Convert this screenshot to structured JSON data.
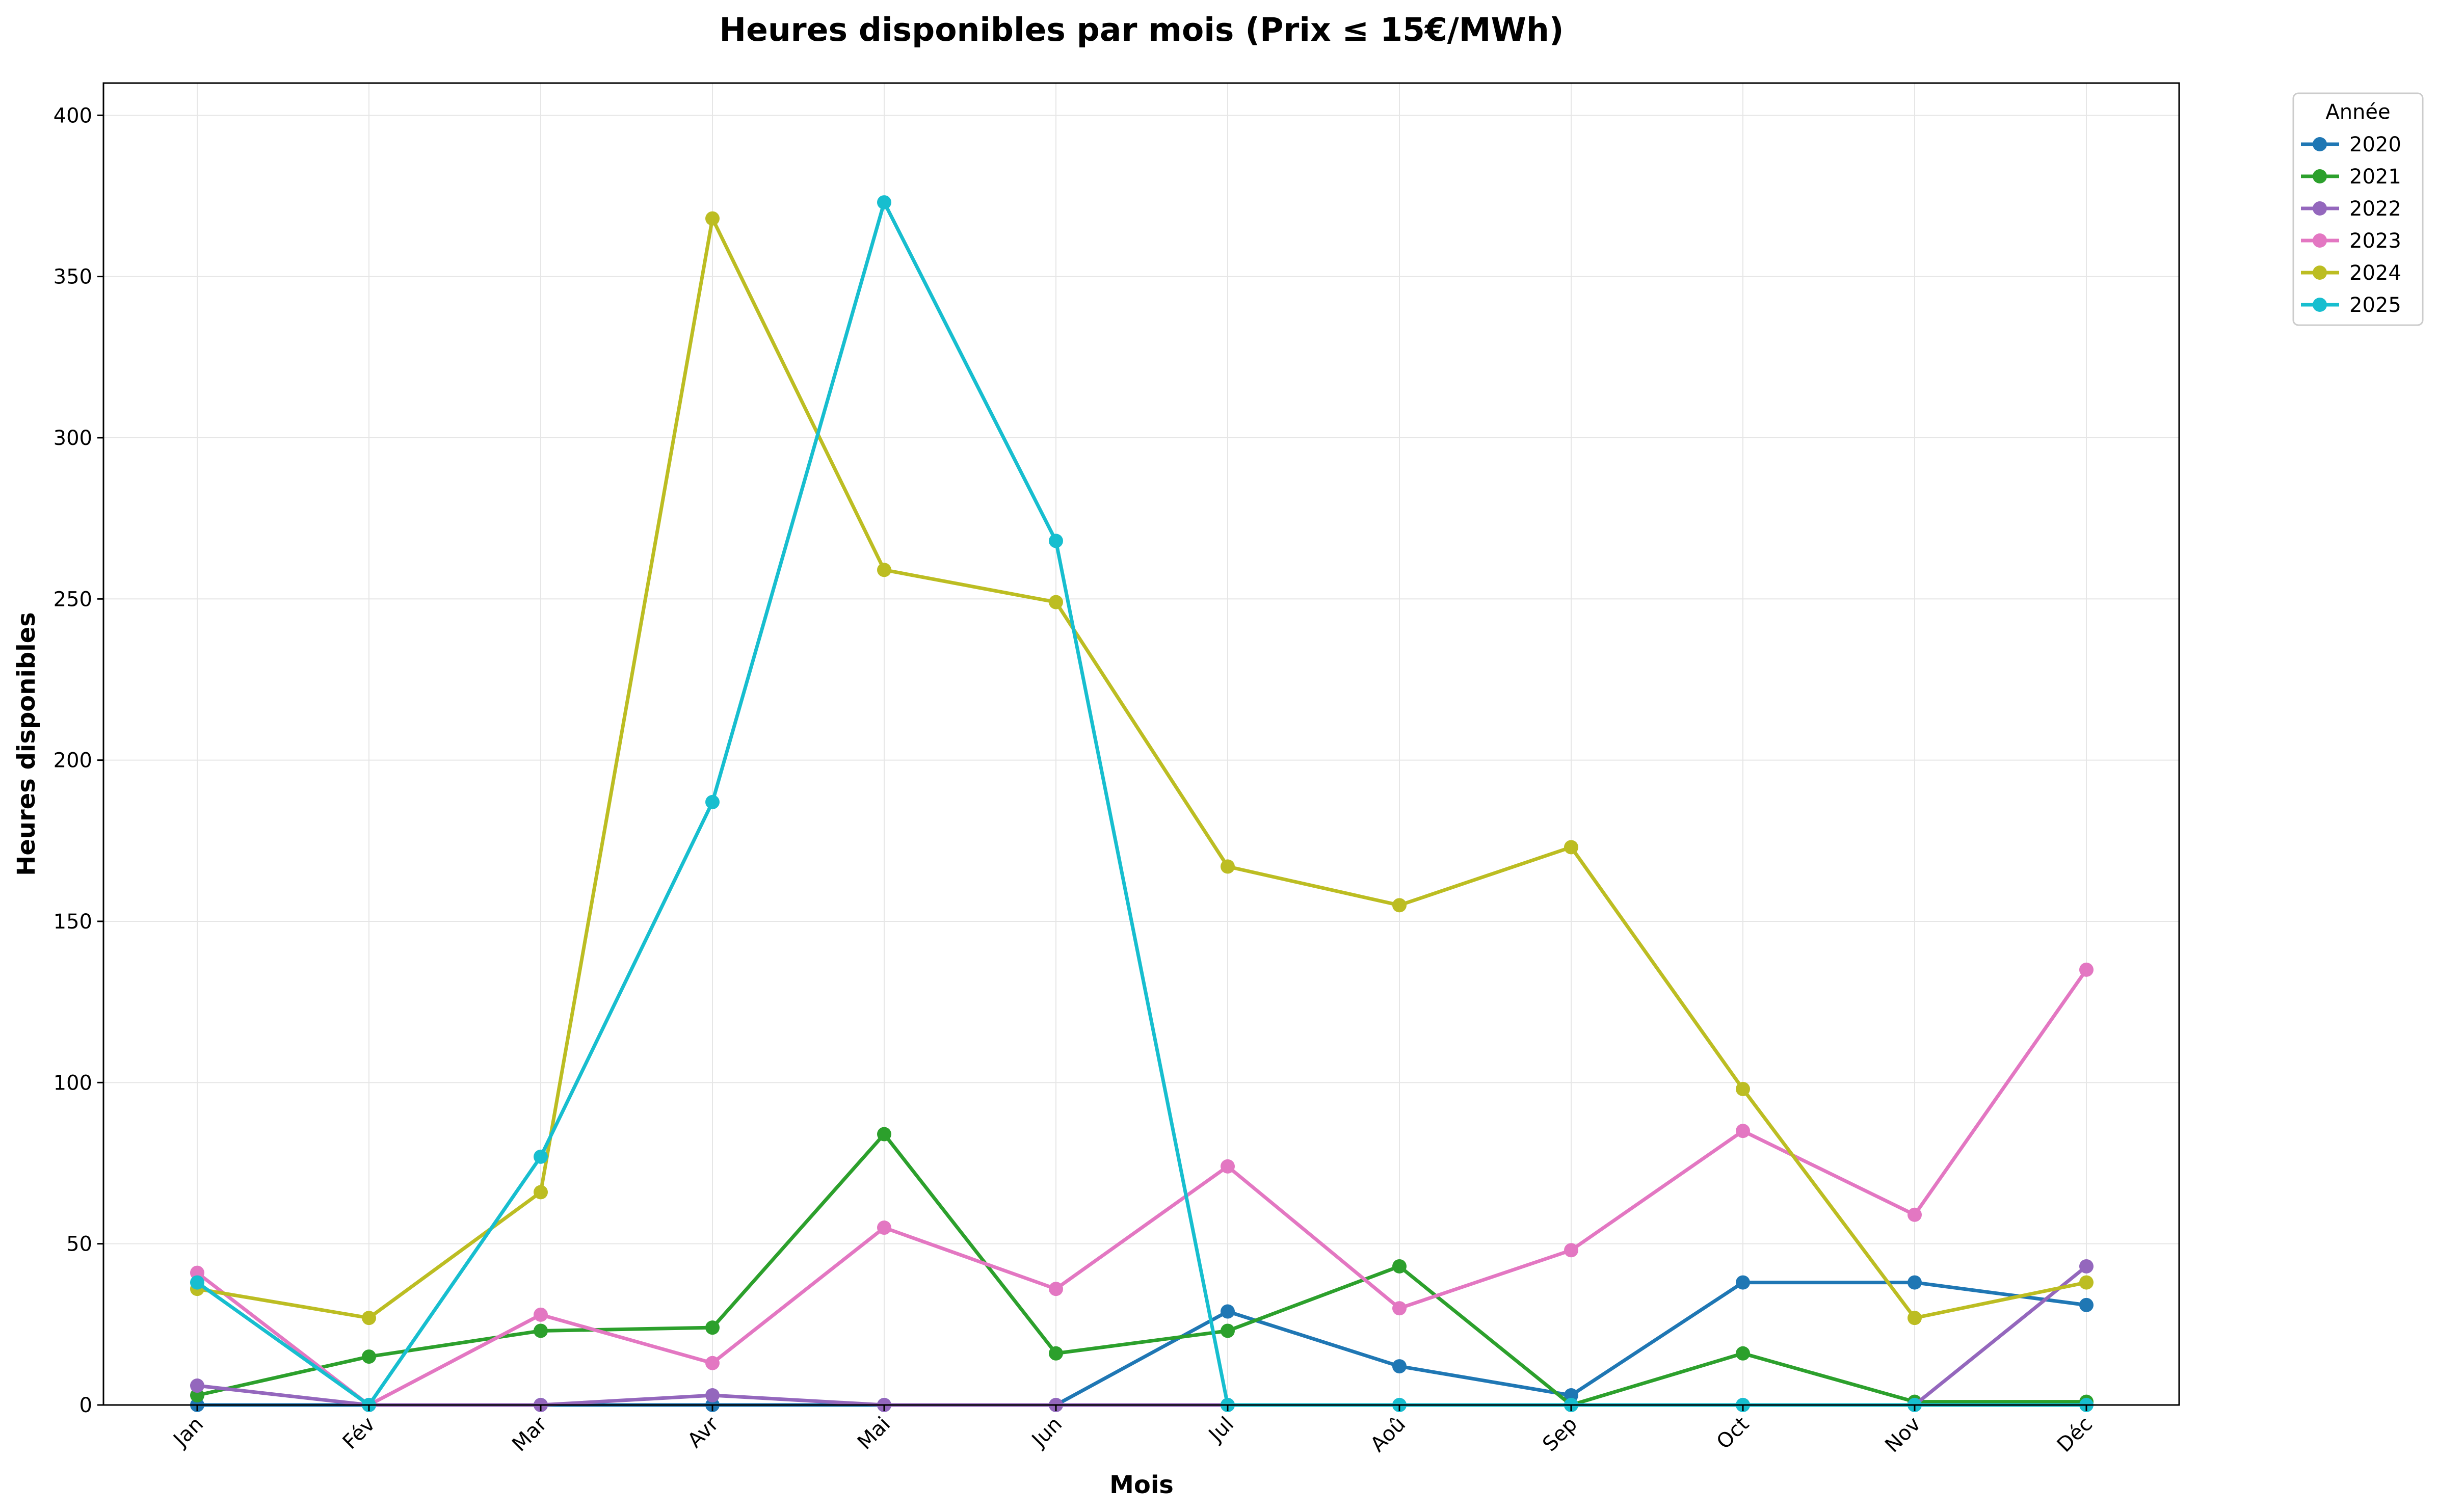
{
  "chart_data": {
    "type": "line",
    "title": "Heures disponibles par mois (Prix ≤ 15€/MWh)",
    "xlabel": "Mois",
    "ylabel": "Heures disponibles",
    "categories": [
      "Jan",
      "Fév",
      "Mar",
      "Avr",
      "Mai",
      "Jun",
      "Jul",
      "Aoû",
      "Sep",
      "Oct",
      "Nov",
      "Déc"
    ],
    "ylim": [
      0,
      410
    ],
    "yticks": [
      0,
      50,
      100,
      150,
      200,
      250,
      300,
      350,
      400
    ],
    "grid": true,
    "legend_title": "Année",
    "legend_position": "outside top-right",
    "series": [
      {
        "name": "2020",
        "color": "#1f77b4",
        "values": [
          0,
          0,
          0,
          0,
          0,
          0,
          29,
          12,
          3,
          38,
          38,
          31
        ]
      },
      {
        "name": "2021",
        "color": "#2ca02c",
        "values": [
          3,
          15,
          23,
          24,
          84,
          16,
          23,
          43,
          0,
          16,
          1,
          1
        ]
      },
      {
        "name": "2022",
        "color": "#9467bd",
        "values": [
          6,
          0,
          0,
          3,
          0,
          0,
          0,
          0,
          0,
          0,
          0,
          43
        ]
      },
      {
        "name": "2023",
        "color": "#e377c2",
        "values": [
          41,
          0,
          28,
          13,
          55,
          36,
          74,
          30,
          48,
          85,
          59,
          135
        ]
      },
      {
        "name": "2024",
        "color": "#bcbd22",
        "values": [
          36,
          27,
          66,
          368,
          259,
          249,
          167,
          155,
          173,
          98,
          27,
          38
        ]
      },
      {
        "name": "2025",
        "color": "#17becf",
        "values": [
          38,
          0,
          77,
          187,
          373,
          268,
          0,
          0,
          0,
          0,
          0,
          0
        ]
      }
    ]
  }
}
